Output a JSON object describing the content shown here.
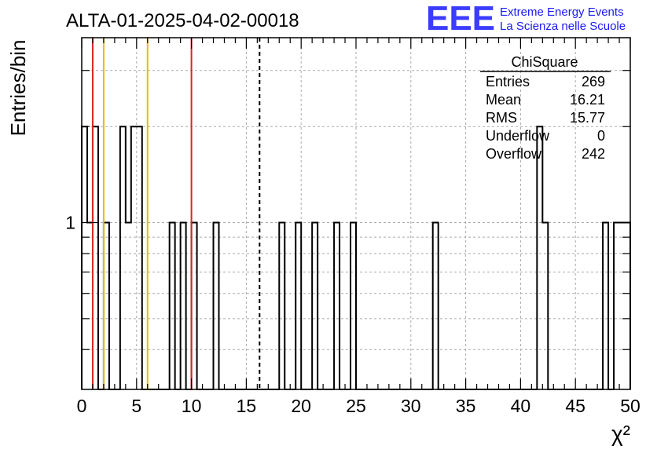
{
  "chart_data": {
    "type": "histogram",
    "title": "ALTA-01-2025-04-02-00018",
    "xlabel": "χ²",
    "ylabel": "Entries/bin",
    "xlim": [
      0,
      50
    ],
    "ylim": [
      0.3,
      3.8
    ],
    "y_scale": "log",
    "x_ticks": [
      "0",
      "5",
      "10",
      "15",
      "20",
      "25",
      "30",
      "35",
      "40",
      "45",
      "50"
    ],
    "y_tick_labels": [
      {
        "value": 1,
        "label": "1"
      }
    ],
    "grid": true,
    "bin_width": 0.5,
    "bins": [
      {
        "x0": 0.0,
        "value": 2
      },
      {
        "x0": 0.5,
        "value": 1
      },
      {
        "x0": 1.0,
        "value": 2
      },
      {
        "x0": 2.0,
        "value": 1
      },
      {
        "x0": 3.5,
        "value": 2
      },
      {
        "x0": 4.0,
        "value": 1
      },
      {
        "x0": 4.5,
        "value": 2
      },
      {
        "x0": 5.0,
        "value": 2
      },
      {
        "x0": 8.0,
        "value": 1
      },
      {
        "x0": 9.0,
        "value": 1
      },
      {
        "x0": 10.0,
        "value": 1
      },
      {
        "x0": 12.0,
        "value": 1
      },
      {
        "x0": 18.0,
        "value": 1
      },
      {
        "x0": 19.5,
        "value": 1
      },
      {
        "x0": 21.0,
        "value": 1
      },
      {
        "x0": 23.0,
        "value": 1
      },
      {
        "x0": 24.5,
        "value": 1
      },
      {
        "x0": 32.0,
        "value": 1
      },
      {
        "x0": 41.5,
        "value": 2
      },
      {
        "x0": 42.0,
        "value": 1
      },
      {
        "x0": 47.5,
        "value": 1
      },
      {
        "x0": 48.5,
        "value": 1
      },
      {
        "x0": 49.0,
        "value": 1
      },
      {
        "x0": 49.5,
        "value": 1
      }
    ],
    "vertical_lines": [
      {
        "x": 1.0,
        "color": "#d62728",
        "style": "solid"
      },
      {
        "x": 2.0,
        "color": "#f2b705",
        "style": "solid"
      },
      {
        "x": 6.0,
        "color": "#f2b705",
        "style": "solid"
      },
      {
        "x": 10.0,
        "color": "#d62728",
        "style": "solid"
      },
      {
        "x": 16.21,
        "color": "#000000",
        "style": "dashed"
      }
    ],
    "stats": {
      "title": "ChiSquare",
      "rows": [
        {
          "label": "Entries",
          "value": "269"
        },
        {
          "label": "Mean",
          "value": "16.21"
        },
        {
          "label": "RMS",
          "value": "15.77"
        },
        {
          "label": "Underflow",
          "value": "0"
        },
        {
          "label": "Overflow",
          "value": "242"
        }
      ]
    }
  },
  "logo": {
    "text": "EEE",
    "line1": "Extreme Energy Events",
    "line2": "La Scienza nelle Scuole",
    "color": "#1a1aff"
  }
}
